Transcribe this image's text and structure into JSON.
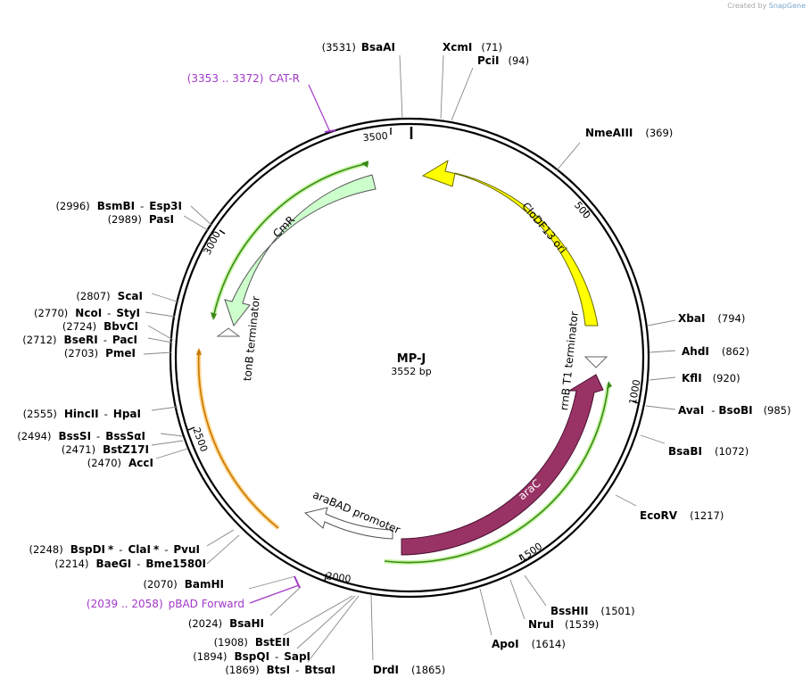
{
  "header": {
    "created_by": "Created by",
    "brand": "SnapGene"
  },
  "plasmid": {
    "name": "MP-J",
    "size": "3552 bp"
  },
  "ticks": [
    "500",
    "1000",
    "1500",
    "2000",
    "2500",
    "3000",
    "3500"
  ],
  "features": {
    "clodf13": "CloDF13 ori",
    "rrnb": "rrnB T1 terminator",
    "arac": "araC",
    "arabad": "araBAD promoter",
    "cmr": "CmR",
    "tonb": "tonB terminator"
  },
  "primers": {
    "catr": {
      "range": "(3353 .. 3372)",
      "name": "CAT-R"
    },
    "pbad": {
      "range": "(2039 .. 2058)",
      "name": "pBAD Forward"
    }
  },
  "sites": {
    "bsaai": {
      "name": "BsaAI",
      "pos": "(3531)"
    },
    "xcmi": {
      "name": "XcmI",
      "pos": "(71)"
    },
    "pcii": {
      "name": "PciI",
      "pos": "(94)"
    },
    "nmeaiii": {
      "name": "NmeAIII",
      "pos": "(369)"
    },
    "xbai": {
      "name": "XbaI",
      "pos": "(794)"
    },
    "ahdi": {
      "name": "AhdI",
      "pos": "(862)"
    },
    "kfli": {
      "name": "KflI",
      "pos": "(920)"
    },
    "avai": {
      "name": "AvaI",
      "sep": "-",
      "name2": "BsoBI",
      "pos": "(985)"
    },
    "bsabi": {
      "name": "BsaBI",
      "pos": "(1072)"
    },
    "ecorv": {
      "name": "EcoRV",
      "pos": "(1217)"
    },
    "bsshii": {
      "name": "BssHII",
      "pos": "(1501)"
    },
    "nrui": {
      "name": "NruI",
      "pos": "(1539)"
    },
    "apoi": {
      "name": "ApoI",
      "pos": "(1614)"
    },
    "drdi": {
      "name": "DrdI",
      "pos": "(1865)"
    },
    "btsi": {
      "pos": "(1869)",
      "name": "BtsI",
      "sep": "-",
      "name2": "BtsαI"
    },
    "bspqi": {
      "pos": "(1894)",
      "name": "BspQI",
      "sep": "-",
      "name2": "SapI"
    },
    "bsteii": {
      "pos": "(1908)",
      "name": "BstEII"
    },
    "bsahi": {
      "pos": "(2024)",
      "name": "BsaHI"
    },
    "bamhi": {
      "pos": "(2070)",
      "name": "BamHI"
    },
    "baegi": {
      "pos": "(2214)",
      "name": "BaeGI",
      "sep": "-",
      "name2": "Bme1580I"
    },
    "bspdi": {
      "pos": "(2248)",
      "name": "BspDI",
      "star": "*",
      "sep": "-",
      "name2": "ClaI",
      "star2": "*",
      "sep2": "-",
      "name3": "PvuI"
    },
    "acci": {
      "pos": "(2470)",
      "name": "AccI"
    },
    "bstz17i": {
      "pos": "(2471)",
      "name": "BstZ17I"
    },
    "bsssi": {
      "pos": "(2494)",
      "name": "BssSI",
      "sep": "-",
      "name2": "BssSαI"
    },
    "hincii": {
      "pos": "(2555)",
      "name": "HincII",
      "sep": "-",
      "name2": "HpaI"
    },
    "pmei": {
      "pos": "(2703)",
      "name": "PmeI"
    },
    "beri": {
      "pos": "(2712)",
      "name": "BseRI",
      "sep": "-",
      "name2": "PacI"
    },
    "bbvci": {
      "pos": "(2724)",
      "name": "BbvCI"
    },
    "ncoi": {
      "pos": "(2770)",
      "name": "NcoI",
      "sep": "-",
      "name2": "StyI"
    },
    "scai": {
      "pos": "(2807)",
      "name": "ScaI"
    },
    "pasi": {
      "pos": "(2989)",
      "name": "PasI"
    },
    "bsmbi": {
      "pos": "(2996)",
      "name": "BsmBI",
      "sep": "-",
      "name2": "Esp3I"
    }
  },
  "colors": {
    "clodf13": "#ffff00",
    "arac": "#993366",
    "cmr": "#ccffcc",
    "primer": "#a238c8",
    "feature_line_green": "#3a8a1a",
    "feature_line_orange": "#c87800"
  }
}
